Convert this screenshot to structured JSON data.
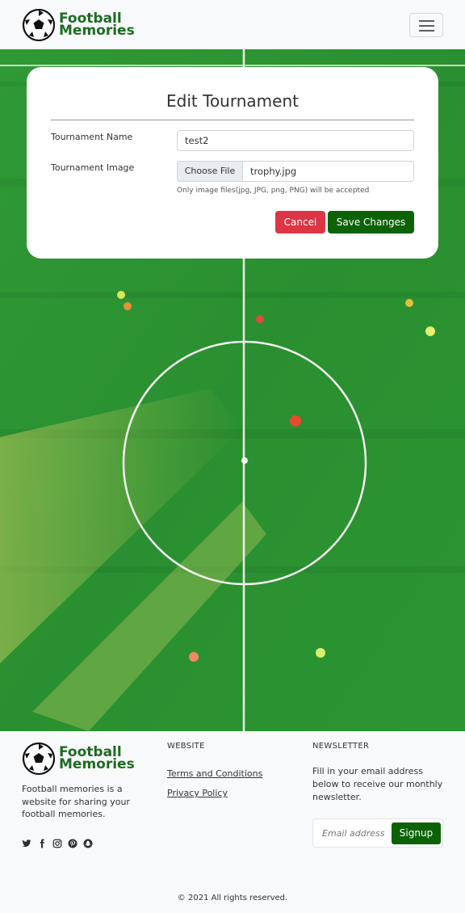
{
  "brand": {
    "line1": "Football",
    "line2": "Memories"
  },
  "form": {
    "title": "Edit Tournament",
    "name_label": "Tournament Name",
    "name_value": "test2",
    "image_label": "Tournament Image",
    "choose_file_label": "Choose File",
    "file_name": "trophy.jpg",
    "hint": "Only image files(jpg, JPG, png, PNG) will be accepted",
    "cancel_label": "Cancel",
    "save_label": "Save Changes"
  },
  "footer": {
    "description": "Football memories is a website for sharing your football memories.",
    "website_heading": "WEBSITE",
    "links": [
      "Terms and Conditions",
      "Privacy Policy"
    ],
    "newsletter_heading": "NEWSLETTER",
    "newsletter_text": "Fill in your email address below to receive our monthly newsletter.",
    "email_placeholder": "Email address",
    "signup_label": "Signup",
    "copyright": "© 2021 All rights reserved.",
    "social_icons": [
      "twitter-icon",
      "facebook-icon",
      "instagram-icon",
      "pinterest-icon",
      "snapchat-icon"
    ]
  },
  "colors": {
    "brand_green": "#1d6b22",
    "save_green": "#0b6306",
    "cancel_red": "#dc3545"
  }
}
